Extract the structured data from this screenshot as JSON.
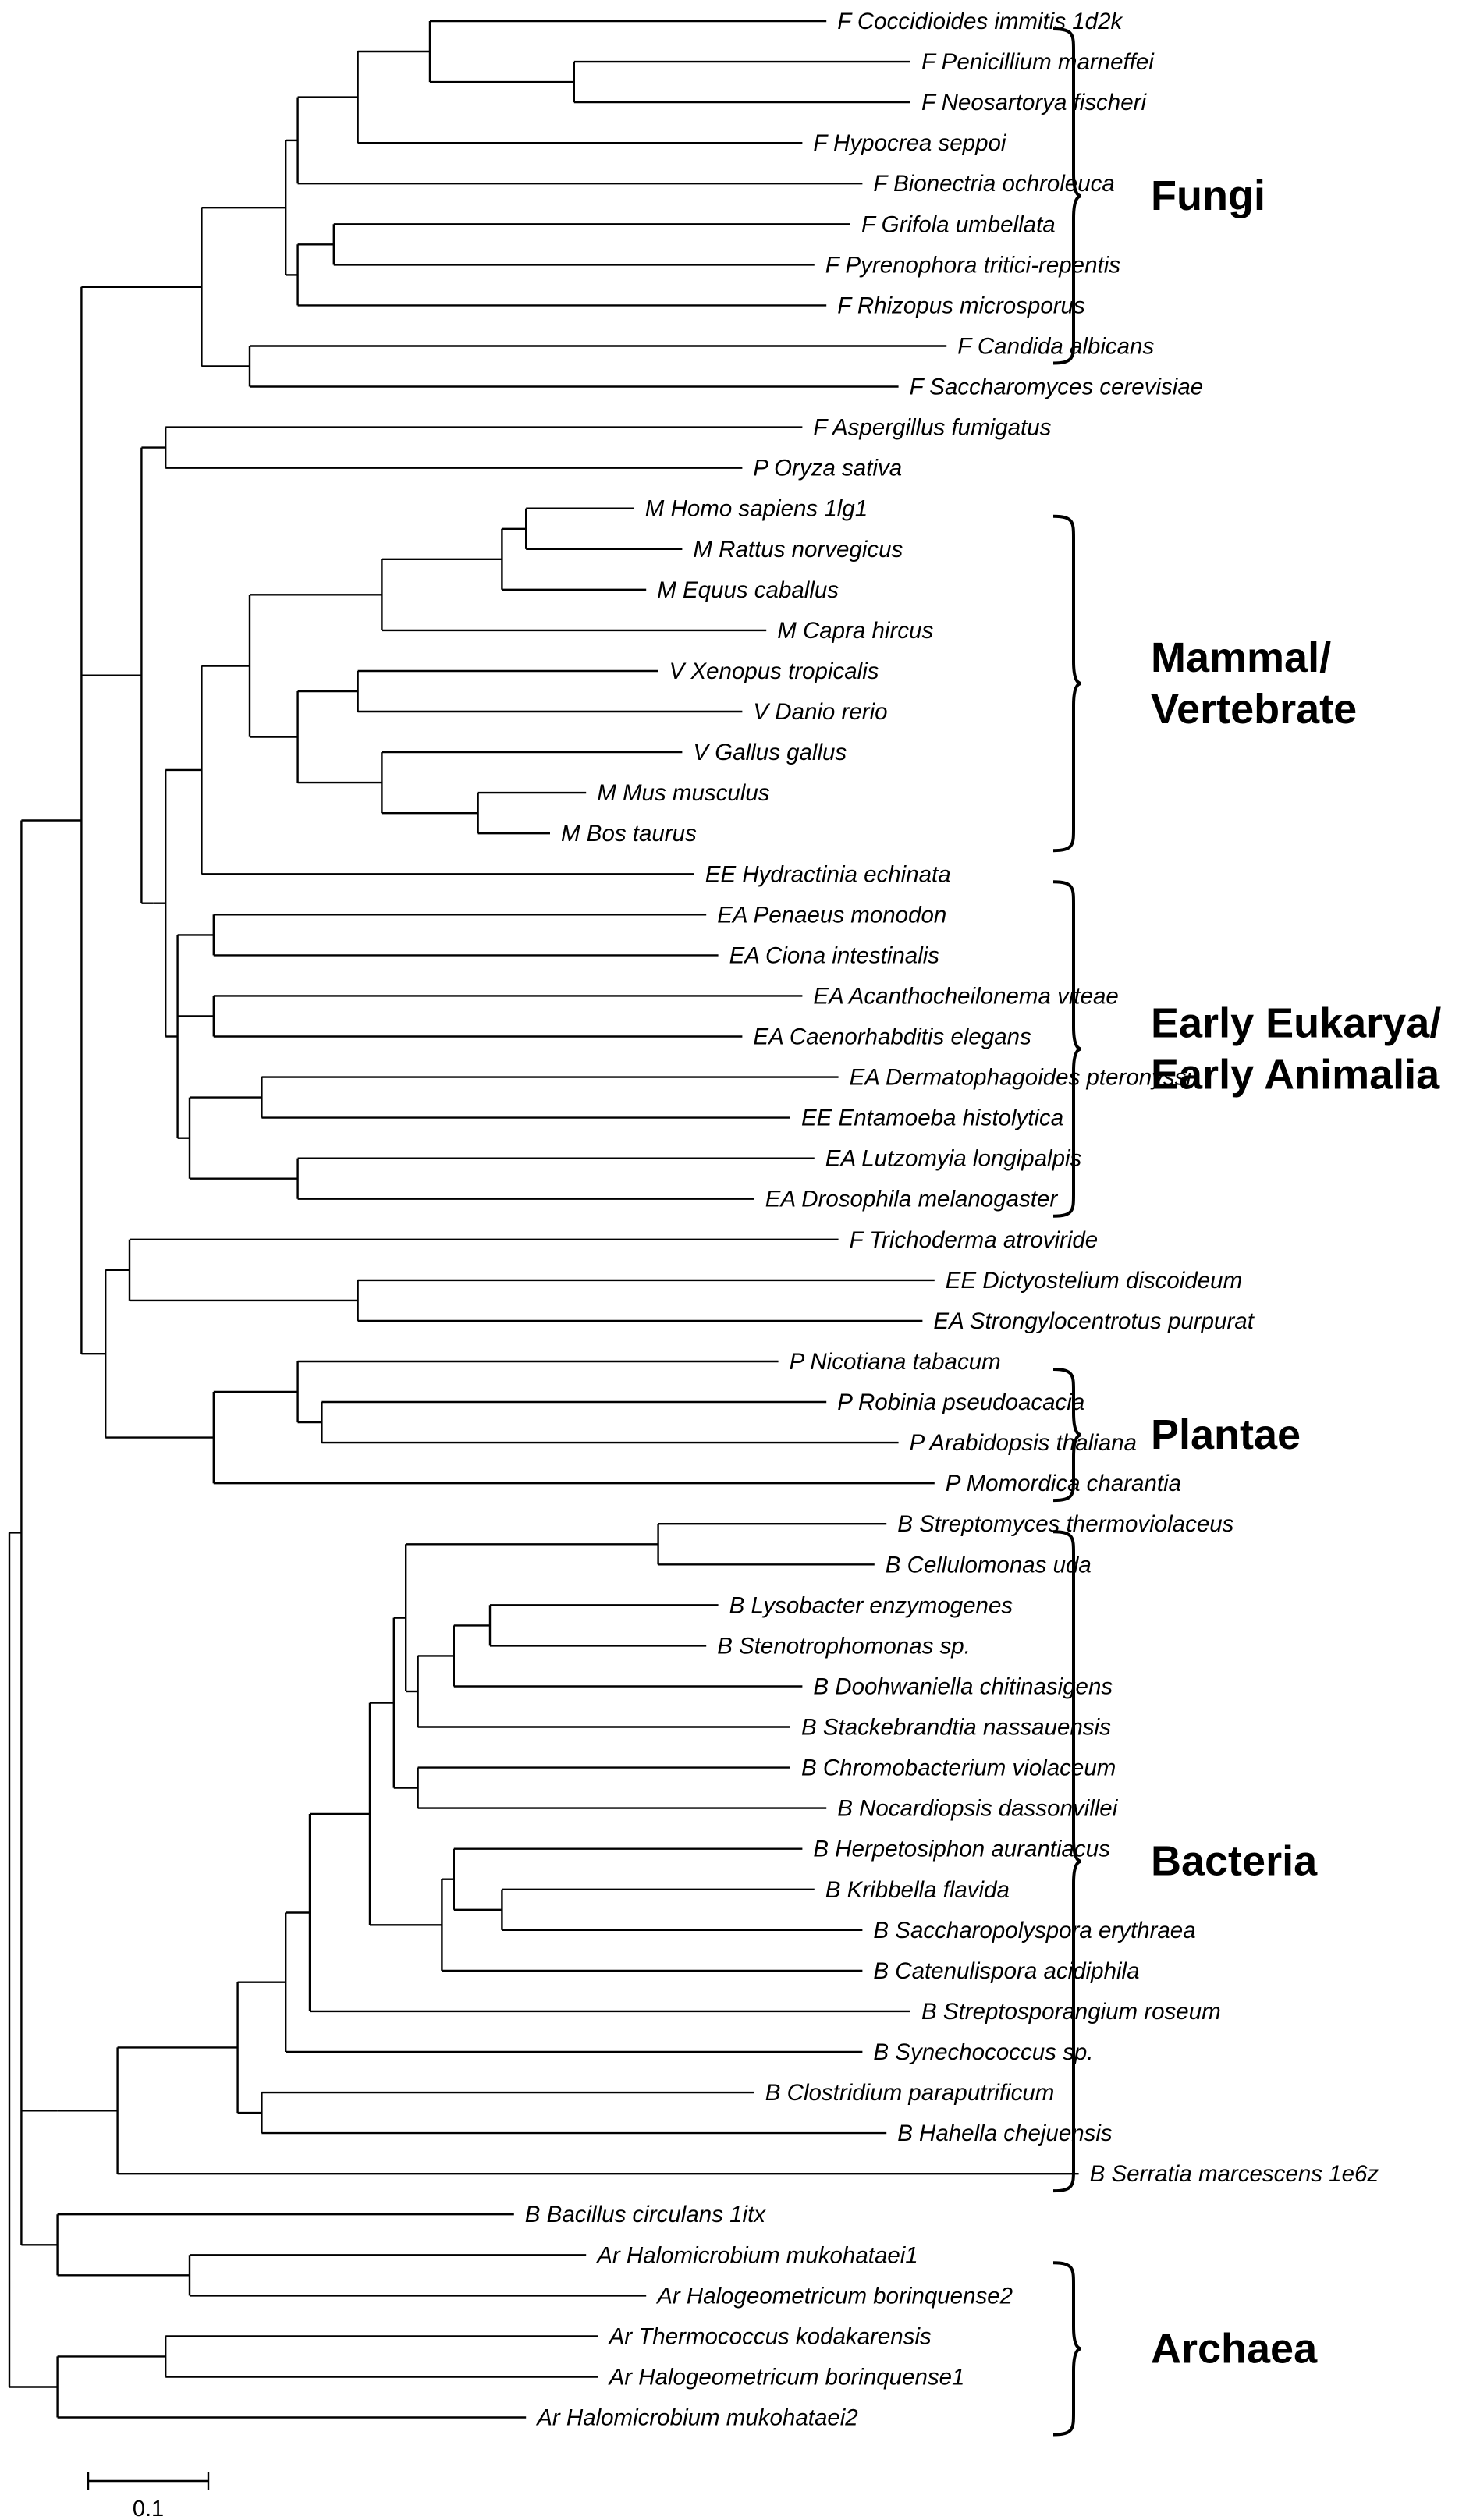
{
  "taxa": [
    "F Coccidioides immitis 1d2k",
    "F Penicillium marneffei",
    "F Neosartorya fischeri",
    "F Hypocrea seppoi",
    "F Bionectria ochroleuca",
    "F Grifola umbellata",
    "F Pyrenophora tritici-repentis",
    "F Rhizopus microsporus",
    "F Candida albicans",
    "F Saccharomyces cerevisiae",
    "F Aspergillus fumigatus",
    "P Oryza sativa",
    "M Homo sapiens 1lg1",
    "M Rattus norvegicus",
    "M Equus caballus",
    "M Capra hircus",
    "V Xenopus tropicalis",
    "V Danio rerio",
    "V Gallus gallus",
    "M Mus musculus",
    "M Bos taurus",
    "EE Hydractinia echinata",
    "EA Penaeus monodon",
    "EA Ciona intestinalis",
    "EA Acanthocheilonema viteae",
    "EA Caenorhabditis elegans",
    "EA Dermatophagoides pteronyssi",
    "EE Entamoeba histolytica",
    "EA Lutzomyia longipalpis",
    "EA Drosophila melanogaster",
    "F Trichoderma atroviride",
    "EE Dictyostelium discoideum",
    "EA Strongylocentrotus purpurat",
    "P Nicotiana tabacum",
    "P Robinia pseudoacacia",
    "P Arabidopsis thaliana",
    "P Momordica charantia",
    "B Streptomyces thermoviolaceus",
    "B Cellulomonas uda",
    "B Lysobacter enzymogenes",
    "B Stenotrophomonas sp.",
    "B Doohwaniella chitinasigens",
    "B Stackebrandtia nassauensis",
    "B Chromobacterium violaceum",
    "B Nocardiopsis dassonvillei",
    "B Herpetosiphon aurantiacus",
    "B Kribbella flavida",
    "B Saccharopolyspora erythraea",
    "B Catenulispora acidiphila",
    "B Streptosporangium roseum",
    "B Synechococcus sp.",
    "B Clostridium paraputrificum",
    "B Hahella chejuensis",
    "B Serratia marcescens 1e6z",
    "B Bacillus circulans 1itx",
    "Ar Halomicrobium mukohataei1",
    "Ar Halogeometricum borinquense2",
    "Ar Thermococcus kodakarensis",
    "Ar Halogeometricum borinquense1",
    "Ar Halomicrobium mukohataei2"
  ],
  "groups": [
    {
      "name": "Fungi",
      "first": 0,
      "last": 8
    },
    {
      "name": "Mammal/\nVertebrate",
      "first": 12,
      "last": 20
    },
    {
      "name": "Early Eukarya/\nEarly Animalia",
      "first": 21,
      "last": 29
    },
    {
      "name": "Plantae",
      "first": 33,
      "last": 36
    },
    {
      "name": "Bacteria",
      "first": 37,
      "last": 53
    },
    {
      "name": "Archaea",
      "first": 55,
      "last": 59
    }
  ],
  "scale_bar": {
    "label": "0.1",
    "length": 0.1
  },
  "tree_newick": "((((((((((((((F Coccidioides immitis 1d2k:0.33,(F Penicillium marneffei:0.28,F Neosartorya fischeri:0.28):0.12):0.06,F Hypocrea seppoi:0.37):0.05,F Bionectria ochroleuca:0.47):0.01,((F Grifola umbellata:0.43,F Pyrenophora tritici-repentis:0.40):0.03,F Rhizopus microsporus:0.44):0.01):0.07,(F Candida albicans:0.58,F Saccharomyces cerevisiae:0.54):0.04):0.10,((F Aspergillus fumigatus:0.53,P Oryza sativa:0.48):0.02,(((((((M Homo sapiens 1lg1:0.09,M Rattus norvegicus:0.13):0.02,M Equus caballus:0.12):0.10,M Capra hircus:0.32):0.11,((V Xenopus tropicalis:0.25,V Danio rerio:0.32):0.05,(V Gallus gallus:0.25,(M Mus musculus:0.09,M Bos taurus:0.06):0.08):0.07):0.04):0.04,EE Hydractinia echinata:0.41):0.03,((EA Penaeus monodon:0.41,EA Ciona intestinalis:0.42):0.03,(EA Acanthocheilonema viteae:0.49,EA Caenorhabditis elegans:0.44):0.03,((EA Dermatophagoides pteronyssi:0.48,EE Entamoeba histolytica:0.44):0.06,(EA Lutzomyia longipalpis:0.43,EA Drosophila melanogaster:0.38):0.09):0.01):0.01):0.01):0.01):0.05,((F Trichoderma atroviride:0.59,(EE Dictyostelium discoideum:0.48,EA Strongylocentrotus purpurat:0.47):0.19):0.02,((P Nicotiana tabacum:0.40,(P Robinia pseudoacacia:0.42,P Arabidopsis thaliana:0.48):0.02):0.07,P Momordica charantia:0.60):0.09):0.02):0.05,(((((((((B Streptomyces thermoviolaceus:0.19,B Cellulomonas uda:0.18):0.21,(((B Lysobacter enzymogenes:0.19,B Stenotrophomonas sp.:0.18):0.03,B Doohwaniella chitinasigens:0.29):0.03,B Stackebrandtia nassauensis:0.31):0.01):0.01,(B Chromobacterium violaceum:0.31,B Nocardiopsis dassonvillei:0.34):0.02):0.02,((B Herpetosiphon aurantiacus:0.29,(B Kribbella flavida:0.26,B Saccharopolyspora erythraea:0.30):0.04):0.01,B Catenulispora acidiphila:0.35):0.06):0.05,B Streptosporangium roseum:0.50):0.02,B Synechococcus sp.:0.48):0.04,(B Clostridium paraputrificum:0.41,B Hahella chejuensis:0.52):0.02):0.10,B Serratia marcescens 1e6z:0.80):0.05):0.03,(B Bacillus circulans 1itx:0.38,(Ar Halomicrobium mukohataei1:0.33,Ar Halogeometricum borinquense2:0.38):0.11):0.03):0.01,((Ar Thermococcus kodakarensis:0.36,Ar Halogeometricum borinquense1:0.36):0.09,Ar Halomicrobium mukohataei2:0.39):0.04);"
}
